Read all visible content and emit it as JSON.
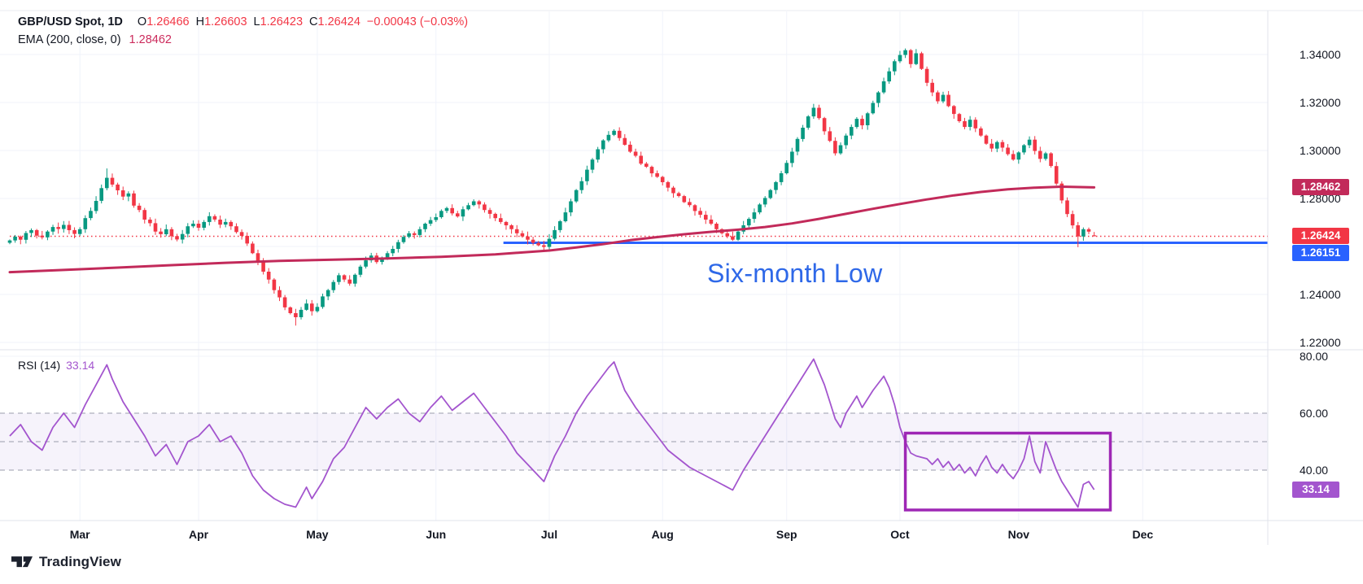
{
  "legend": {
    "symbol": "GBP/USD Spot, 1D",
    "o_letter": "O",
    "o_value": "1.26466",
    "h_letter": "H",
    "h_value": "1.26603",
    "l_letter": "L",
    "l_value": "1.26423",
    "c_letter": "C",
    "c_value": "1.26424",
    "change": "−0.00043 (−0.03%)",
    "ema_label": "EMA (200, close, 0)",
    "ema_value": "1.28462"
  },
  "rsi_legend": {
    "name": "RSI (14)",
    "value": "33.14"
  },
  "annotation": {
    "text": "Six-month Low",
    "color": "#2E68E8"
  },
  "logo": {
    "brand": "TradingView"
  },
  "badges": {
    "ema": "1.28462",
    "close": "1.26424",
    "level": "1.26151",
    "rsi": "33.14"
  },
  "colors": {
    "up": "#089981",
    "down": "#F23645",
    "ema": "#C22A5A",
    "close_line": "#F23645",
    "level_line": "#2962FF",
    "rsi": "#A355CE",
    "rsi_band_dash": "#8A8E9E",
    "rsi_band_fill": "rgba(126,87,194,0.07)",
    "box": "#9E27B5",
    "grid": "#F0F3FA",
    "separator": "#E0E3EB",
    "text": "#131722",
    "badge_ema": "#C22A5A",
    "badge_close": "#F23645",
    "badge_level": "#2962FF",
    "badge_rsi": "#A355CE"
  },
  "chart_data": [
    {
      "type": "candlestick",
      "title": "GBP/USD Spot, 1D",
      "ohlc_last": {
        "open": 1.26466,
        "high": 1.26603,
        "low": 1.26423,
        "close": 1.26424,
        "change": -0.00043,
        "change_pct": -0.03
      },
      "ylim": [
        1.2173,
        1.358
      ],
      "grid": true,
      "closes": [
        1.2625,
        1.2641,
        1.2628,
        1.2656,
        1.2668,
        1.2645,
        1.2638,
        1.2662,
        1.2681,
        1.2673,
        1.269,
        1.2668,
        1.2652,
        1.2672,
        1.2718,
        1.2748,
        1.279,
        1.2843,
        1.2886,
        1.2858,
        1.2834,
        1.2808,
        1.2821,
        1.277,
        1.2752,
        1.2712,
        1.2697,
        1.2662,
        1.2651,
        1.2672,
        1.2643,
        1.2629,
        1.2652,
        1.2684,
        1.2695,
        1.2678,
        1.2702,
        1.2726,
        1.2712,
        1.2691,
        1.2702,
        1.2684,
        1.266,
        1.2644,
        1.2612,
        1.2572,
        1.254,
        1.2495,
        1.2462,
        1.2418,
        1.2388,
        1.2346,
        1.2322,
        1.2305,
        1.2336,
        1.2362,
        1.233,
        1.2348,
        1.2392,
        1.2418,
        1.2452,
        1.248,
        1.2462,
        1.2445,
        1.2482,
        1.2516,
        1.2542,
        1.2562,
        1.2535,
        1.2548,
        1.2572,
        1.259,
        1.2618,
        1.264,
        1.2655,
        1.2648,
        1.2672,
        1.2695,
        1.271,
        1.2722,
        1.2748,
        1.276,
        1.2738,
        1.2725,
        1.2755,
        1.2772,
        1.2788,
        1.2775,
        1.2752,
        1.2736,
        1.2718,
        1.2702,
        1.2688,
        1.2672,
        1.2655,
        1.2642,
        1.2628,
        1.2615,
        1.2605,
        1.2598,
        1.2632,
        1.2668,
        1.2705,
        1.2742,
        1.2788,
        1.2835,
        1.2872,
        1.292,
        1.2962,
        1.3005,
        1.3042,
        1.3065,
        1.3082,
        1.3052,
        1.3024,
        1.2995,
        1.2978,
        1.2945,
        1.2932,
        1.2905,
        1.289,
        1.2868,
        1.2845,
        1.2822,
        1.281,
        1.2785,
        1.2772,
        1.2748,
        1.2732,
        1.2712,
        1.2695,
        1.2672,
        1.2655,
        1.2642,
        1.2628,
        1.2662,
        1.2688,
        1.2715,
        1.2742,
        1.2775,
        1.2802,
        1.2835,
        1.2868,
        1.2905,
        1.2948,
        1.2995,
        1.3048,
        1.3095,
        1.3142,
        1.3178,
        1.3135,
        1.308,
        1.304,
        1.2988,
        1.3022,
        1.3062,
        1.3098,
        1.3132,
        1.3105,
        1.3155,
        1.3198,
        1.3242,
        1.3288,
        1.333,
        1.3372,
        1.3398,
        1.3418,
        1.336,
        1.3405,
        1.334,
        1.3282,
        1.3242,
        1.3205,
        1.3232,
        1.3185,
        1.3152,
        1.3122,
        1.3098,
        1.3128,
        1.3092,
        1.3062,
        1.3028,
        1.3008,
        1.3035,
        1.3012,
        1.2985,
        1.2962,
        1.2992,
        1.3022,
        1.3045,
        1.2998,
        1.2965,
        1.2988,
        1.2935,
        1.2862,
        1.2792,
        1.2735,
        1.2688,
        1.2642,
        1.2672,
        1.2662,
        1.26424
      ],
      "overrides": {
        "18": {
          "h": 1.2925
        },
        "53": {
          "l": 1.227
        },
        "166": {
          "h": 1.3425
        },
        "198": {
          "l": 1.2597
        },
        "201": {
          "o": 1.26466,
          "h": 1.26603,
          "l": 1.26423,
          "c": 1.26424
        }
      },
      "ema": {
        "label": "EMA (200, close, 0)",
        "last": 1.28462,
        "points": [
          [
            0,
            1.2493
          ],
          [
            10,
            1.2502
          ],
          [
            20,
            1.2512
          ],
          [
            30,
            1.2522
          ],
          [
            40,
            1.2532
          ],
          [
            50,
            1.254
          ],
          [
            60,
            1.2545
          ],
          [
            70,
            1.255
          ],
          [
            80,
            1.2557
          ],
          [
            90,
            1.2567
          ],
          [
            100,
            1.2583
          ],
          [
            105,
            1.2596
          ],
          [
            110,
            1.261
          ],
          [
            115,
            1.2626
          ],
          [
            120,
            1.2639
          ],
          [
            125,
            1.2651
          ],
          [
            130,
            1.2661
          ],
          [
            135,
            1.267
          ],
          [
            140,
            1.2681
          ],
          [
            145,
            1.2696
          ],
          [
            150,
            1.2715
          ],
          [
            155,
            1.2736
          ],
          [
            160,
            1.2757
          ],
          [
            165,
            1.2777
          ],
          [
            170,
            1.2796
          ],
          [
            175,
            1.2813
          ],
          [
            180,
            1.2827
          ],
          [
            185,
            1.2838
          ],
          [
            190,
            1.2845
          ],
          [
            195,
            1.2849
          ],
          [
            201,
            1.2846
          ]
        ]
      },
      "levels": [
        {
          "value": 1.26424,
          "style": "dotted",
          "color_key": "close_line",
          "badge": "1.26424",
          "i_start": 0
        },
        {
          "value": 1.26151,
          "style": "solid",
          "color_key": "level_line",
          "badge": "1.26151",
          "i_start": 91.5
        }
      ],
      "y_ticks": [
        {
          "label": "1.34000",
          "value": 1.34
        },
        {
          "label": "1.32000",
          "value": 1.32
        },
        {
          "label": "1.30000",
          "value": 1.3
        },
        {
          "label": "1.28000",
          "value": 1.28
        },
        {
          "label": "1.24000",
          "value": 1.24
        },
        {
          "label": "1.22000",
          "value": 1.22
        }
      ],
      "grid_values": [
        1.34,
        1.32,
        1.3,
        1.28,
        1.26,
        1.24,
        1.22
      ],
      "x_months": [
        {
          "label": "Mar",
          "i": 13
        },
        {
          "label": "Apr",
          "i": 35
        },
        {
          "label": "May",
          "i": 57
        },
        {
          "label": "Jun",
          "i": 79
        },
        {
          "label": "Jul",
          "i": 100
        },
        {
          "label": "Aug",
          "i": 121
        },
        {
          "label": "Sep",
          "i": 144
        },
        {
          "label": "Oct",
          "i": 165
        },
        {
          "label": "Nov",
          "i": 187
        },
        {
          "label": "Dec",
          "i": 210
        }
      ]
    },
    {
      "type": "line",
      "name": "RSI (14)",
      "last": 33.14,
      "ylim": [
        22.3,
        81.4
      ],
      "y_ticks": [
        {
          "label": "80.00",
          "value": 80
        },
        {
          "label": "60.00",
          "value": 60
        },
        {
          "label": "40.00",
          "value": 40
        }
      ],
      "band_lines": [
        60,
        50,
        40
      ],
      "band_fill": [
        40,
        60
      ],
      "box": {
        "i_start": 166,
        "i_end": 204,
        "top_value": 53,
        "bottom_value": 26
      },
      "points": [
        [
          0,
          52
        ],
        [
          2,
          56
        ],
        [
          4,
          50
        ],
        [
          6,
          47
        ],
        [
          8,
          55
        ],
        [
          10,
          60
        ],
        [
          12,
          55
        ],
        [
          14,
          63
        ],
        [
          16,
          70
        ],
        [
          18,
          77
        ],
        [
          19,
          72
        ],
        [
          21,
          64
        ],
        [
          23,
          58
        ],
        [
          25,
          52
        ],
        [
          27,
          45
        ],
        [
          29,
          49
        ],
        [
          31,
          42
        ],
        [
          33,
          50
        ],
        [
          35,
          52
        ],
        [
          37,
          56
        ],
        [
          39,
          50
        ],
        [
          41,
          52
        ],
        [
          43,
          46
        ],
        [
          45,
          38
        ],
        [
          47,
          33
        ],
        [
          49,
          30
        ],
        [
          51,
          28
        ],
        [
          53,
          27
        ],
        [
          55,
          34
        ],
        [
          56,
          30
        ],
        [
          58,
          36
        ],
        [
          60,
          44
        ],
        [
          62,
          48
        ],
        [
          64,
          55
        ],
        [
          66,
          62
        ],
        [
          68,
          58
        ],
        [
          70,
          62
        ],
        [
          72,
          65
        ],
        [
          74,
          60
        ],
        [
          76,
          57
        ],
        [
          78,
          62
        ],
        [
          80,
          66
        ],
        [
          82,
          61
        ],
        [
          84,
          64
        ],
        [
          86,
          67
        ],
        [
          88,
          62
        ],
        [
          90,
          57
        ],
        [
          92,
          52
        ],
        [
          94,
          46
        ],
        [
          96,
          42
        ],
        [
          98,
          38
        ],
        [
          99,
          36
        ],
        [
          101,
          45
        ],
        [
          103,
          52
        ],
        [
          105,
          60
        ],
        [
          107,
          66
        ],
        [
          109,
          71
        ],
        [
          111,
          76
        ],
        [
          112,
          78
        ],
        [
          114,
          68
        ],
        [
          116,
          62
        ],
        [
          118,
          57
        ],
        [
          120,
          52
        ],
        [
          122,
          47
        ],
        [
          124,
          44
        ],
        [
          126,
          41
        ],
        [
          128,
          39
        ],
        [
          130,
          37
        ],
        [
          132,
          35
        ],
        [
          134,
          33
        ],
        [
          136,
          40
        ],
        [
          138,
          46
        ],
        [
          140,
          52
        ],
        [
          142,
          58
        ],
        [
          144,
          64
        ],
        [
          146,
          70
        ],
        [
          148,
          76
        ],
        [
          149,
          79
        ],
        [
          151,
          70
        ],
        [
          152,
          64
        ],
        [
          153,
          58
        ],
        [
          154,
          55
        ],
        [
          155,
          60
        ],
        [
          156,
          63
        ],
        [
          157,
          66
        ],
        [
          158,
          62
        ],
        [
          160,
          68
        ],
        [
          162,
          73
        ],
        [
          163,
          69
        ],
        [
          164,
          63
        ],
        [
          165,
          55
        ],
        [
          166,
          50
        ],
        [
          167,
          46
        ],
        [
          168,
          45
        ],
        [
          170,
          44
        ],
        [
          171,
          42
        ],
        [
          172,
          44
        ],
        [
          173,
          41
        ],
        [
          174,
          43
        ],
        [
          175,
          40
        ],
        [
          176,
          42
        ],
        [
          177,
          39
        ],
        [
          178,
          41
        ],
        [
          179,
          38
        ],
        [
          180,
          42
        ],
        [
          181,
          45
        ],
        [
          182,
          41
        ],
        [
          183,
          39
        ],
        [
          184,
          42
        ],
        [
          185,
          39
        ],
        [
          186,
          37
        ],
        [
          187,
          40
        ],
        [
          188,
          44
        ],
        [
          189,
          52
        ],
        [
          190,
          43
        ],
        [
          191,
          39
        ],
        [
          192,
          50
        ],
        [
          193,
          45
        ],
        [
          194,
          40
        ],
        [
          195,
          36
        ],
        [
          196,
          33
        ],
        [
          197,
          30
        ],
        [
          198,
          27
        ],
        [
          199,
          35
        ],
        [
          200,
          36
        ],
        [
          201,
          33.14
        ]
      ]
    }
  ]
}
